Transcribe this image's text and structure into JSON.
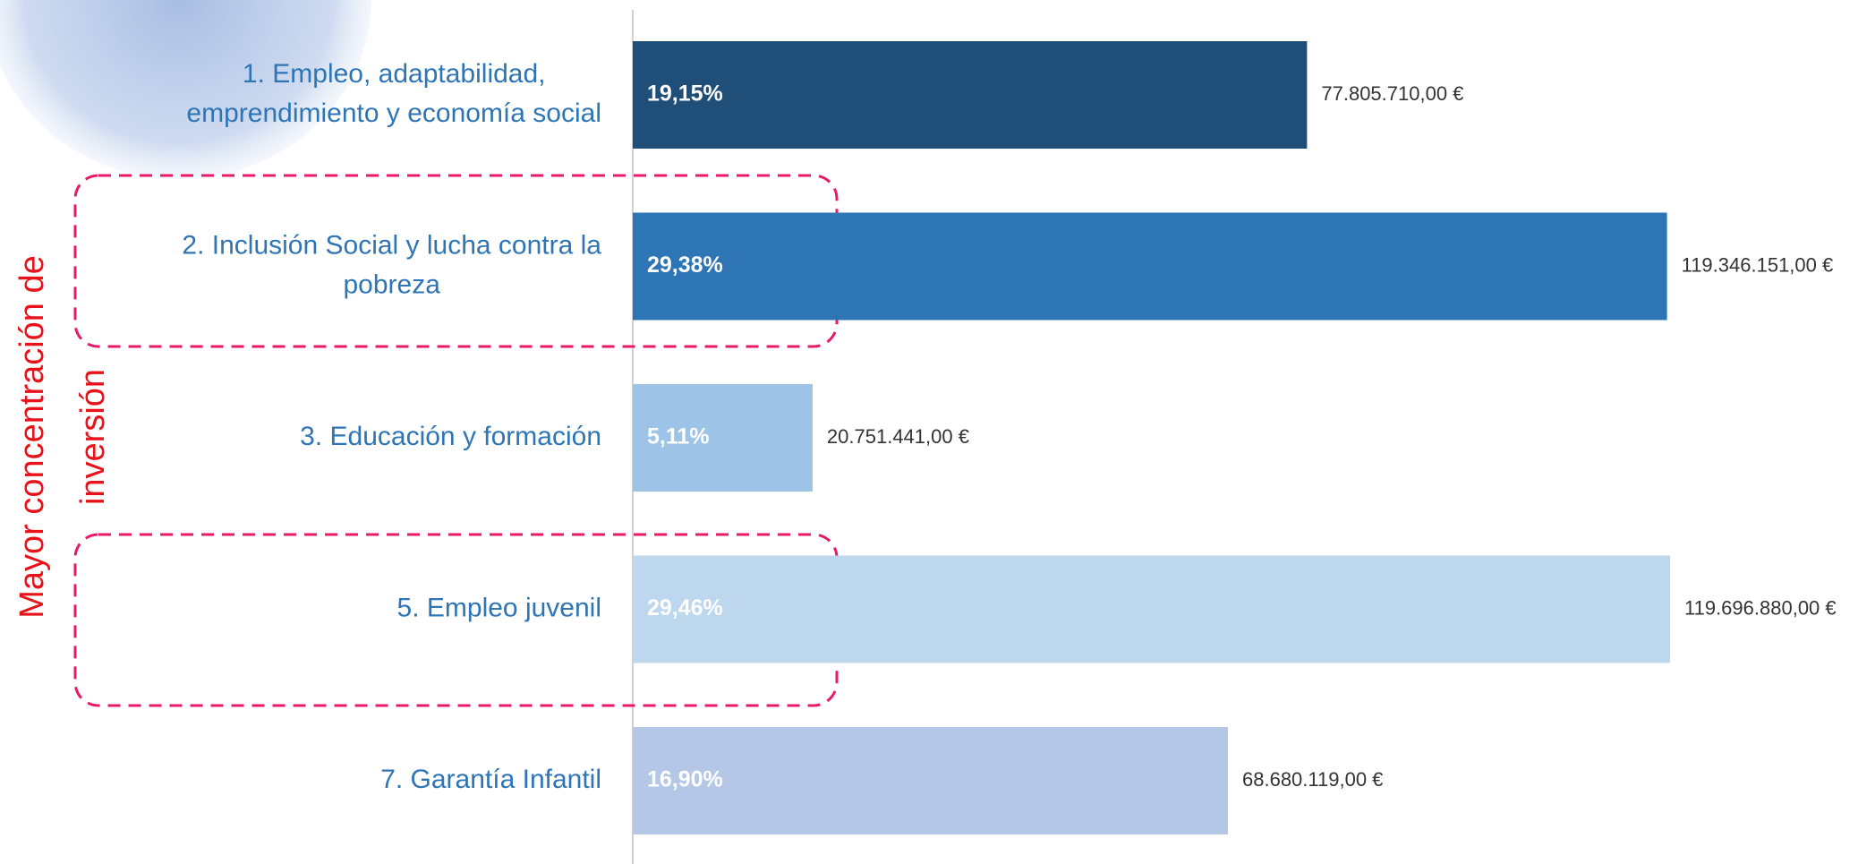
{
  "chart_data": {
    "type": "bar",
    "orientation": "horizontal",
    "annotation": [
      "Mayor concentración de",
      "inversión"
    ],
    "categories": [
      [
        "1. Empleo, adaptabilidad,",
        "emprendimiento y economía social"
      ],
      [
        "2. Inclusión Social y lucha contra la",
        "pobreza"
      ],
      [
        "3. Educación y formación"
      ],
      [
        "5. Empleo juvenil"
      ],
      [
        "7. Garantía Infantil"
      ]
    ],
    "values": [
      77805710.0,
      119346151.0,
      20751441.0,
      119696880.0,
      68680119.0
    ],
    "value_labels": [
      "77.805.710,00 €",
      "119.346.151,00 €",
      "20.751.441,00 €",
      "119.696.880,00 €",
      "68.680.119,00 €"
    ],
    "shares": [
      19.15,
      29.38,
      5.11,
      29.46,
      16.9
    ],
    "share_labels": [
      "19,15%",
      "29,38%",
      "5,11%",
      "29,46%",
      "16,90%"
    ],
    "colors": [
      "#1f4e79",
      "#2e75b6",
      "#9dc3e6",
      "#bdd7ee",
      "#b4c7e7"
    ]
  }
}
